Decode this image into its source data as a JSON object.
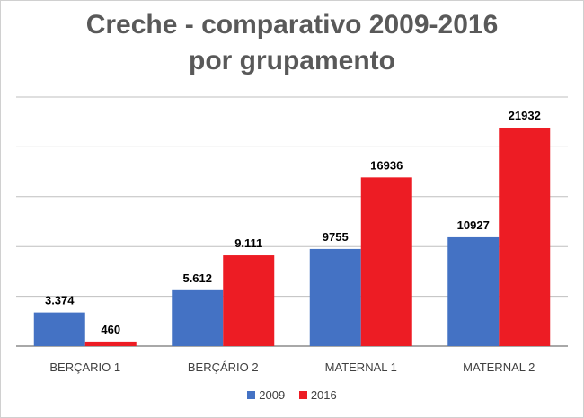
{
  "chart_data": {
    "type": "bar",
    "title_line1": "Creche - comparativo 2009-2016",
    "title_line2": "por grupamento",
    "categories": [
      "BERÇARIO 1",
      "BERÇÁRIO 2",
      "MATERNAL 1",
      "MATERNAL 2"
    ],
    "series": [
      {
        "name": "2009",
        "color": "#4472C4",
        "values": [
          3374,
          5612,
          9755,
          10927
        ],
        "labels": [
          "3.374",
          "5.612",
          "9755",
          "10927"
        ]
      },
      {
        "name": "2016",
        "color": "#ED1C24",
        "values": [
          460,
          9111,
          16936,
          21932
        ],
        "labels": [
          "460",
          "9.111",
          "16936",
          "21932"
        ]
      }
    ],
    "ylim": [
      0,
      25000
    ],
    "grid": true,
    "legend_position": "bottom"
  }
}
